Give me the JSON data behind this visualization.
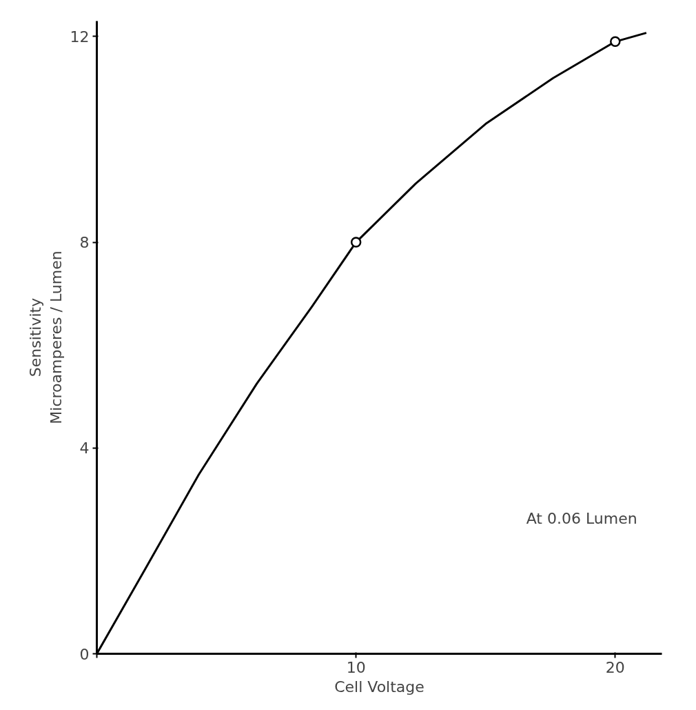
{
  "chart_data": {
    "type": "line",
    "xlabel": "Cell Voltage",
    "ylabel": "Sensitivity\nMicroamperes / Lumen",
    "xlim": [
      0,
      21.8
    ],
    "ylim": [
      0,
      12.3
    ],
    "xticks": [
      {
        "value": 0,
        "label": null
      },
      10,
      20
    ],
    "yticks": [
      0,
      4,
      8,
      12
    ],
    "grid": false,
    "line_style": "solid",
    "annotations": [
      "At 0.06 Lumen"
    ],
    "series": [
      {
        "marker": "none",
        "color": "#000000",
        "x": [
          0,
          1.87,
          3.93,
          6.17,
          8.3,
          10,
          12.3,
          15,
          17.6,
          20,
          21.2
        ],
        "values": [
          0,
          1.65,
          3.48,
          5.25,
          6.75,
          8.0,
          9.14,
          10.3,
          11.19,
          11.9,
          12.07
        ]
      },
      {
        "type": "scatter",
        "marker": "circle",
        "color": "#000000",
        "x": [
          10,
          20
        ],
        "values": [
          8.0,
          11.9
        ]
      }
    ]
  }
}
